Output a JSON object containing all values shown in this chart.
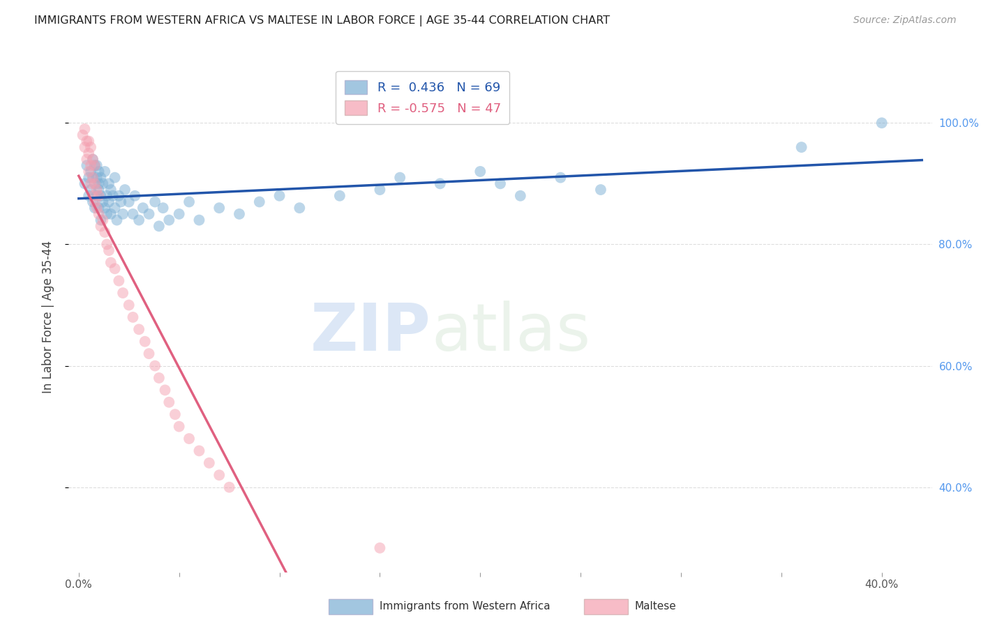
{
  "title": "IMMIGRANTS FROM WESTERN AFRICA VS MALTESE IN LABOR FORCE | AGE 35-44 CORRELATION CHART",
  "source": "Source: ZipAtlas.com",
  "ylabel": "In Labor Force | Age 35-44",
  "right_yticks": [
    0.4,
    0.6,
    0.8,
    1.0
  ],
  "right_yticklabels": [
    "40.0%",
    "60.0%",
    "80.0%",
    "100.0%"
  ],
  "xtick_positions": [
    0.0,
    0.05,
    0.1,
    0.15,
    0.2,
    0.25,
    0.3,
    0.35,
    0.4
  ],
  "xticklabels": [
    "0.0%",
    "",
    "",
    "",
    "",
    "",
    "",
    "",
    "40.0%"
  ],
  "xlim": [
    -0.005,
    0.425
  ],
  "ylim": [
    0.26,
    1.1
  ],
  "blue_R": 0.436,
  "blue_N": 69,
  "pink_R": -0.575,
  "pink_N": 47,
  "blue_color": "#7bafd4",
  "pink_color": "#f4a0b0",
  "blue_line_color": "#2255aa",
  "pink_line_color": "#e06080",
  "dashed_line_color": "#c8c8c8",
  "watermark_zip": "ZIP",
  "watermark_atlas": "atlas",
  "legend_label_blue": "Immigrants from Western Africa",
  "legend_label_pink": "Maltese",
  "blue_scatter_x": [
    0.003,
    0.004,
    0.005,
    0.005,
    0.006,
    0.006,
    0.007,
    0.007,
    0.007,
    0.008,
    0.008,
    0.008,
    0.009,
    0.009,
    0.009,
    0.01,
    0.01,
    0.01,
    0.01,
    0.011,
    0.011,
    0.011,
    0.012,
    0.012,
    0.013,
    0.013,
    0.014,
    0.014,
    0.015,
    0.015,
    0.016,
    0.016,
    0.017,
    0.018,
    0.018,
    0.019,
    0.02,
    0.021,
    0.022,
    0.023,
    0.025,
    0.027,
    0.028,
    0.03,
    0.032,
    0.035,
    0.038,
    0.04,
    0.042,
    0.045,
    0.05,
    0.055,
    0.06,
    0.07,
    0.08,
    0.09,
    0.1,
    0.11,
    0.13,
    0.15,
    0.16,
    0.18,
    0.2,
    0.21,
    0.22,
    0.24,
    0.26,
    0.36,
    0.4
  ],
  "blue_scatter_y": [
    0.9,
    0.93,
    0.91,
    0.88,
    0.92,
    0.89,
    0.91,
    0.94,
    0.87,
    0.93,
    0.9,
    0.86,
    0.91,
    0.88,
    0.93,
    0.89,
    0.92,
    0.86,
    0.9,
    0.91,
    0.88,
    0.84,
    0.9,
    0.87,
    0.86,
    0.92,
    0.88,
    0.85,
    0.9,
    0.87,
    0.89,
    0.85,
    0.88,
    0.86,
    0.91,
    0.84,
    0.88,
    0.87,
    0.85,
    0.89,
    0.87,
    0.85,
    0.88,
    0.84,
    0.86,
    0.85,
    0.87,
    0.83,
    0.86,
    0.84,
    0.85,
    0.87,
    0.84,
    0.86,
    0.85,
    0.87,
    0.88,
    0.86,
    0.88,
    0.89,
    0.91,
    0.9,
    0.92,
    0.9,
    0.88,
    0.91,
    0.89,
    0.96,
    1.0
  ],
  "pink_scatter_x": [
    0.002,
    0.003,
    0.003,
    0.004,
    0.004,
    0.005,
    0.005,
    0.005,
    0.006,
    0.006,
    0.006,
    0.007,
    0.007,
    0.007,
    0.008,
    0.008,
    0.008,
    0.009,
    0.009,
    0.01,
    0.01,
    0.011,
    0.012,
    0.013,
    0.014,
    0.015,
    0.016,
    0.018,
    0.02,
    0.022,
    0.025,
    0.027,
    0.03,
    0.033,
    0.035,
    0.038,
    0.04,
    0.043,
    0.045,
    0.048,
    0.05,
    0.055,
    0.06,
    0.065,
    0.07,
    0.075,
    0.15
  ],
  "pink_scatter_y": [
    0.98,
    0.96,
    0.99,
    0.97,
    0.94,
    0.95,
    0.92,
    0.97,
    0.93,
    0.96,
    0.9,
    0.94,
    0.91,
    0.88,
    0.93,
    0.9,
    0.87,
    0.89,
    0.86,
    0.88,
    0.85,
    0.83,
    0.84,
    0.82,
    0.8,
    0.79,
    0.77,
    0.76,
    0.74,
    0.72,
    0.7,
    0.68,
    0.66,
    0.64,
    0.62,
    0.6,
    0.58,
    0.56,
    0.54,
    0.52,
    0.5,
    0.48,
    0.46,
    0.44,
    0.42,
    0.4,
    0.3
  ],
  "background_color": "#ffffff",
  "grid_color": "#dddddd"
}
